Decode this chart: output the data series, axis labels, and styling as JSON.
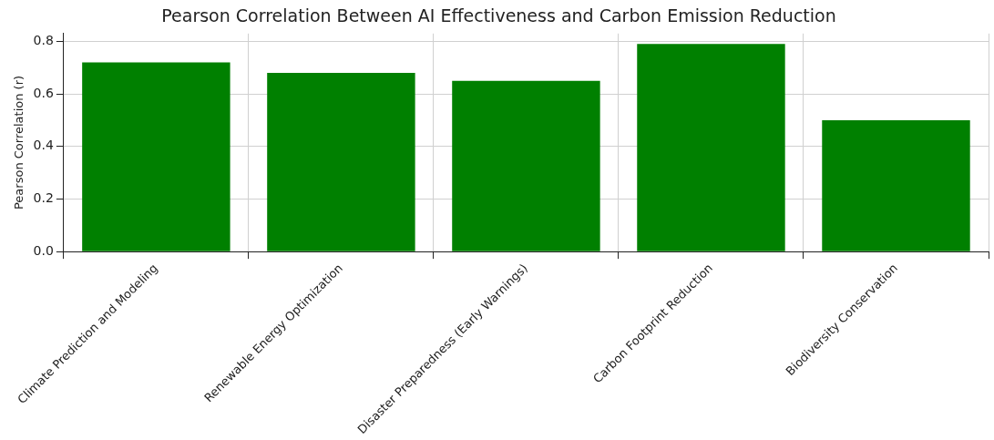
{
  "chart_data": {
    "type": "bar",
    "title": "Pearson Correlation Between AI Effectiveness and Carbon Emission Reduction",
    "ylabel": "Pearson Correlation (r)",
    "categories": [
      "Climate Prediction and Modeling",
      "Renewable Energy Optimization",
      "Disaster Preparedness (Early Warnings)",
      "Carbon Footprint Reduction",
      "Biodiversity Conservation"
    ],
    "values": [
      0.72,
      0.68,
      0.65,
      0.79,
      0.5
    ],
    "color": "#008000",
    "ylim": [
      0,
      0.83
    ],
    "yticks": [
      {
        "value": 0,
        "label": "0.0"
      },
      {
        "value": 0.2,
        "label": "0.2"
      },
      {
        "value": 0.4,
        "label": "0.4"
      },
      {
        "value": 0.6,
        "label": "0.6"
      },
      {
        "value": 0.8,
        "label": "0.8"
      }
    ],
    "grid": true
  }
}
